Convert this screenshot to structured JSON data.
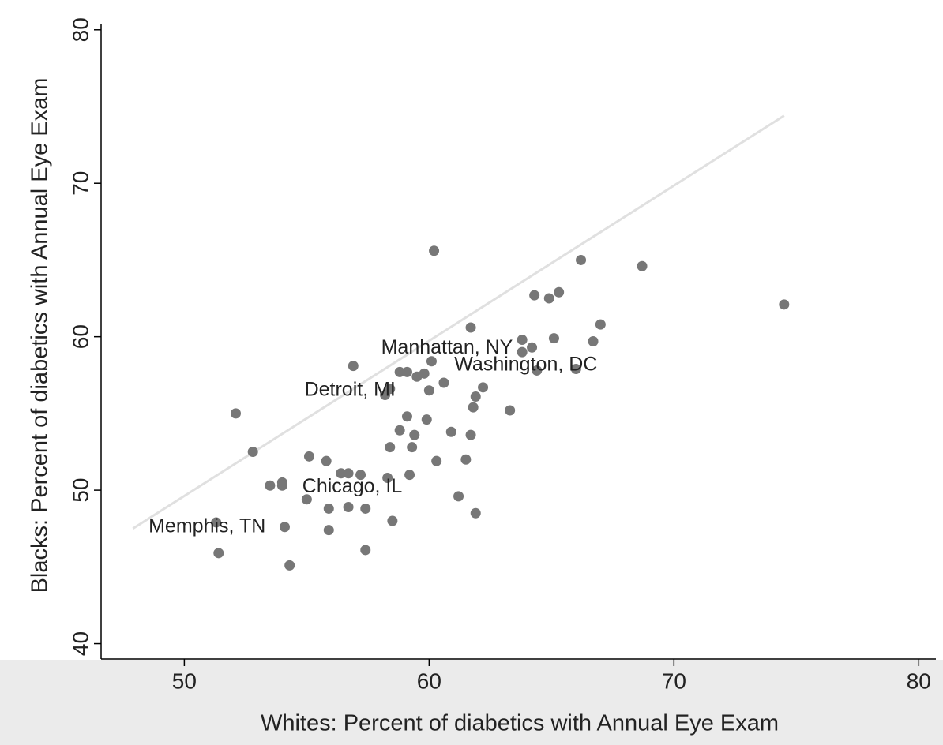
{
  "chart_data": {
    "type": "scatter",
    "x_label": "Whites: Percent of diabetics with Annual Eye Exam",
    "y_label": "Blacks: Percent of diabetics with Annual Eye Exam",
    "color": "#777777",
    "x": [
      60.2,
      66.2,
      68.7,
      64.3,
      64.9,
      65.3,
      74.5,
      67.0,
      61.7,
      63.8,
      65.1,
      66.7,
      64.2,
      63.8,
      56.9,
      60.1,
      66.0,
      64.4,
      58.8,
      59.1,
      59.5,
      59.8,
      58.4,
      60.6,
      62.2,
      60.0,
      61.9,
      58.2,
      61.8,
      63.3,
      52.1,
      59.1,
      59.9,
      59.4,
      58.8,
      60.9,
      61.7,
      59.3,
      58.4,
      52.8,
      55.1,
      55.8,
      60.3,
      61.5,
      56.4,
      56.7,
      57.2,
      59.2,
      58.3,
      53.5,
      54.0,
      54.0,
      55.0,
      61.2,
      55.9,
      56.7,
      57.4,
      61.9,
      58.5,
      51.3,
      54.1,
      55.9,
      57.4,
      51.4,
      54.3
    ],
    "values": [
      65.6,
      65.0,
      64.6,
      62.7,
      62.5,
      62.9,
      62.1,
      60.8,
      60.6,
      59.8,
      59.9,
      59.7,
      59.3,
      59.0,
      58.1,
      58.4,
      57.9,
      57.8,
      57.7,
      57.7,
      57.4,
      57.6,
      56.6,
      57.0,
      56.7,
      56.5,
      56.1,
      56.2,
      55.4,
      55.2,
      55.0,
      54.8,
      54.6,
      53.6,
      53.9,
      53.8,
      53.6,
      52.8,
      52.8,
      52.5,
      52.2,
      51.9,
      51.9,
      52.0,
      51.1,
      51.1,
      51.0,
      51.0,
      50.8,
      50.3,
      50.5,
      50.3,
      49.4,
      49.6,
      48.8,
      48.9,
      48.8,
      48.5,
      48.0,
      47.9,
      47.6,
      47.4,
      46.1,
      45.9,
      45.1
    ],
    "reference_line": {
      "x": [
        47.9,
        74.5
      ],
      "y": [
        47.5,
        74.4
      ],
      "color": "#e0e0e0"
    },
    "annotations": [
      {
        "text": "Manhattan, NY",
        "x": 60.73,
        "y": 59.23
      },
      {
        "text": "Washington, DC",
        "x": 63.95,
        "y": 58.14
      },
      {
        "text": "Detroit, MI",
        "x": 56.77,
        "y": 56.49
      },
      {
        "text": "Chicago, IL",
        "x": 56.86,
        "y": 50.2
      },
      {
        "text": "Memphis, TN",
        "x": 50.93,
        "y": 47.6
      }
    ],
    "xlim": [
      46.6,
      80.7
    ],
    "xticks": [
      50,
      60,
      70,
      80
    ],
    "ylim": [
      39,
      80.4
    ],
    "yticks": [
      40,
      50,
      60,
      70,
      80
    ]
  }
}
